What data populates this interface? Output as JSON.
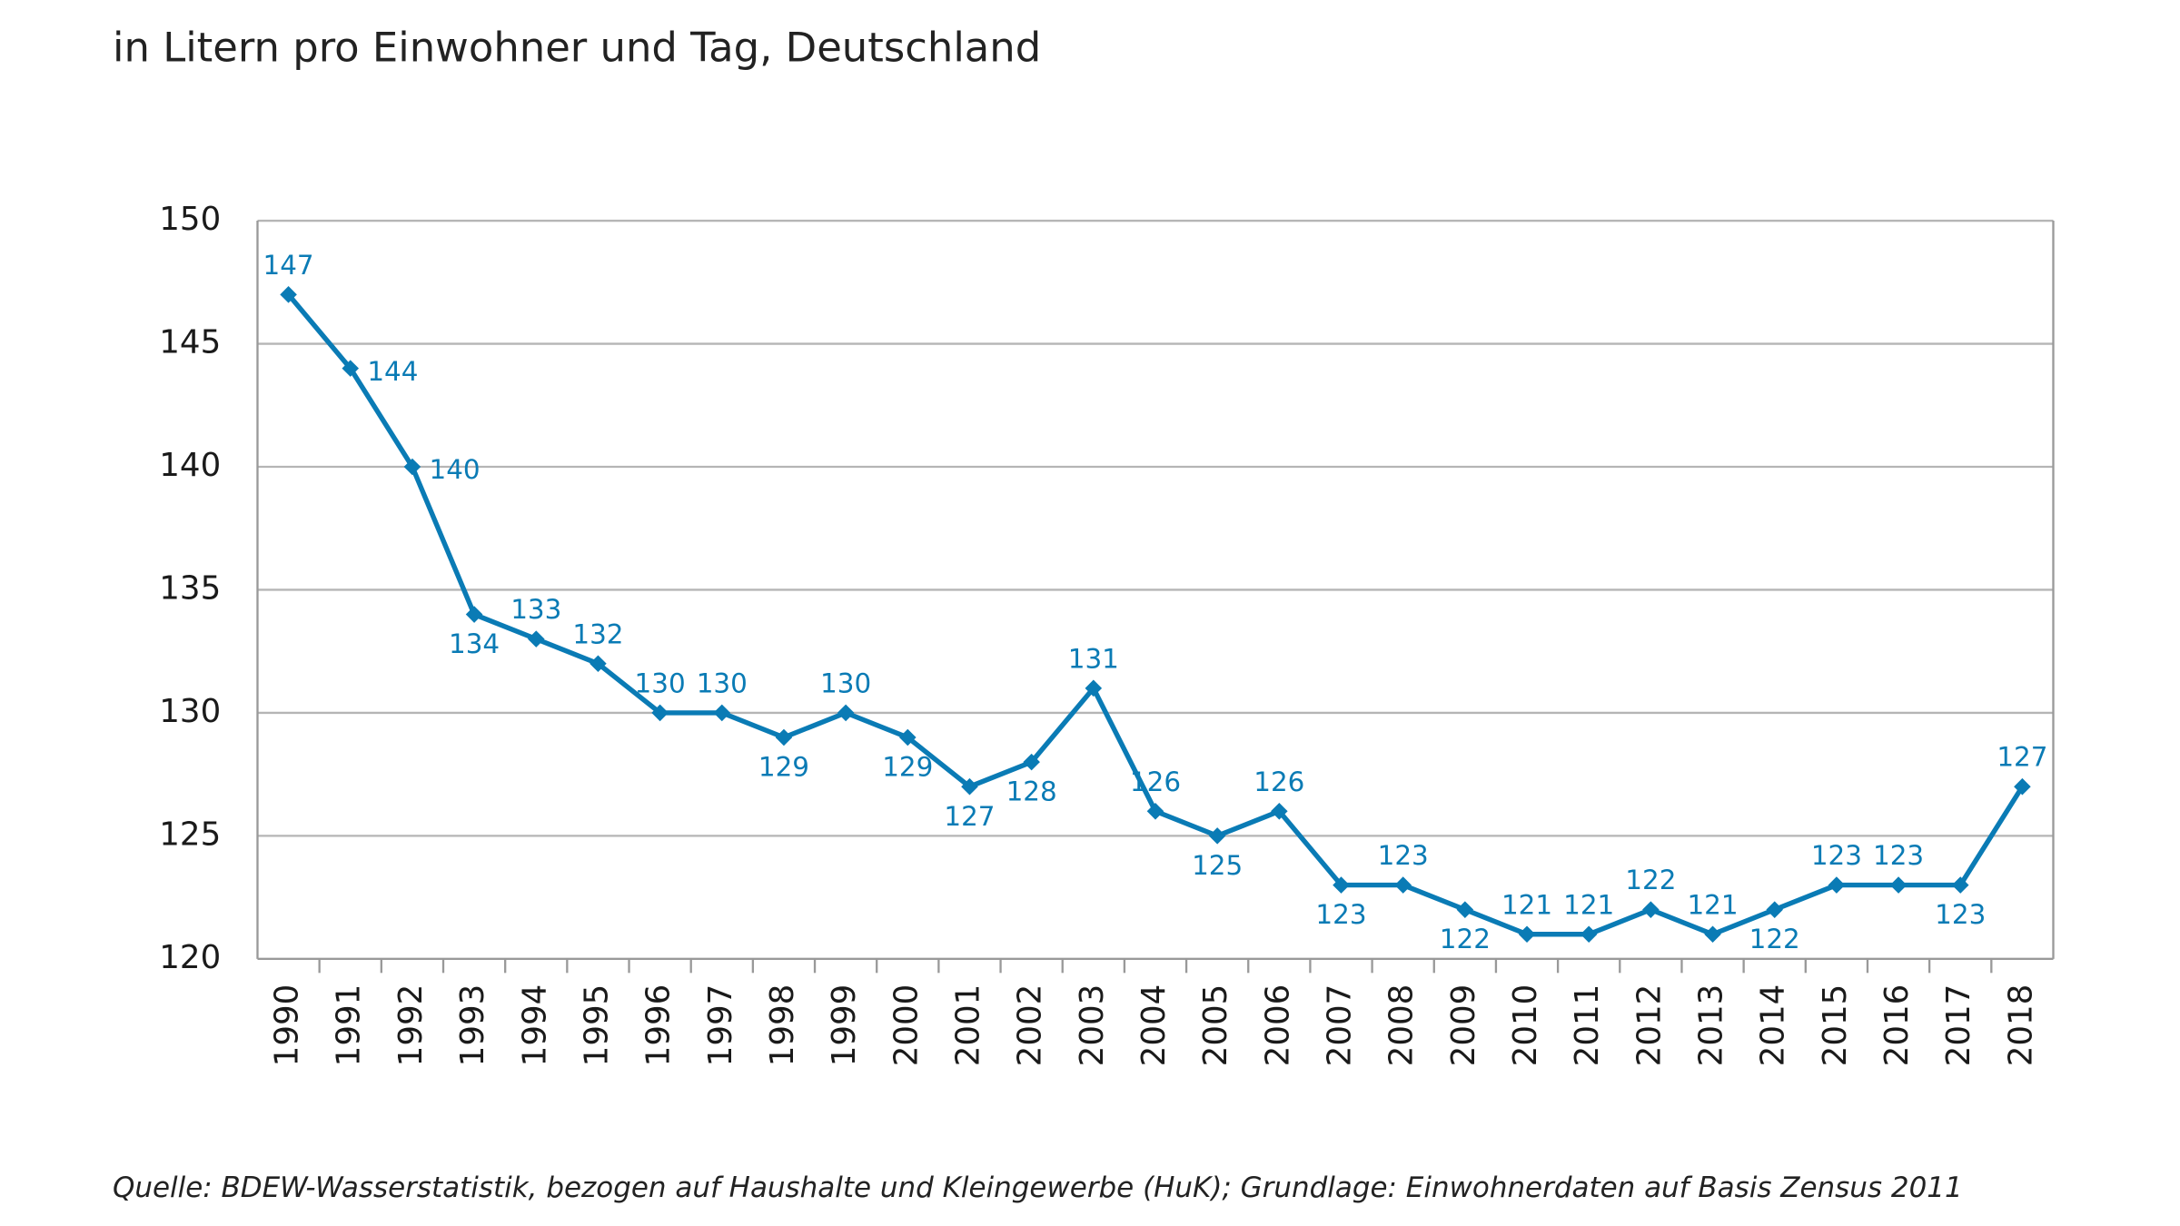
{
  "chart_data": {
    "type": "line",
    "subtitle": "in Litern pro Einwohner und Tag, Deutschland",
    "source": "Quelle: BDEW-Wasserstatistik, bezogen auf Haushalte und Kleingewerbe (HuK); Grundlage: Einwohnerdaten auf Basis Zensus 2011",
    "categories": [
      "1990",
      "1991",
      "1992",
      "1993",
      "1994",
      "1995",
      "1996",
      "1997",
      "1998",
      "1999",
      "2000",
      "2001",
      "2002",
      "2003",
      "2004",
      "2005",
      "2006",
      "2007",
      "2008",
      "2009",
      "2010",
      "2011",
      "2012",
      "2013",
      "2014",
      "2015",
      "2016",
      "2017",
      "2018"
    ],
    "values": [
      147,
      144,
      140,
      134,
      133,
      132,
      130,
      130,
      129,
      130,
      129,
      127,
      128,
      131,
      126,
      125,
      126,
      123,
      123,
      122,
      121,
      121,
      122,
      121,
      122,
      123,
      123,
      123,
      127
    ],
    "color": "#0a7bb5",
    "ylim": [
      120,
      150
    ],
    "yticks": [
      120,
      125,
      130,
      135,
      140,
      145,
      150
    ],
    "grid": true
  }
}
